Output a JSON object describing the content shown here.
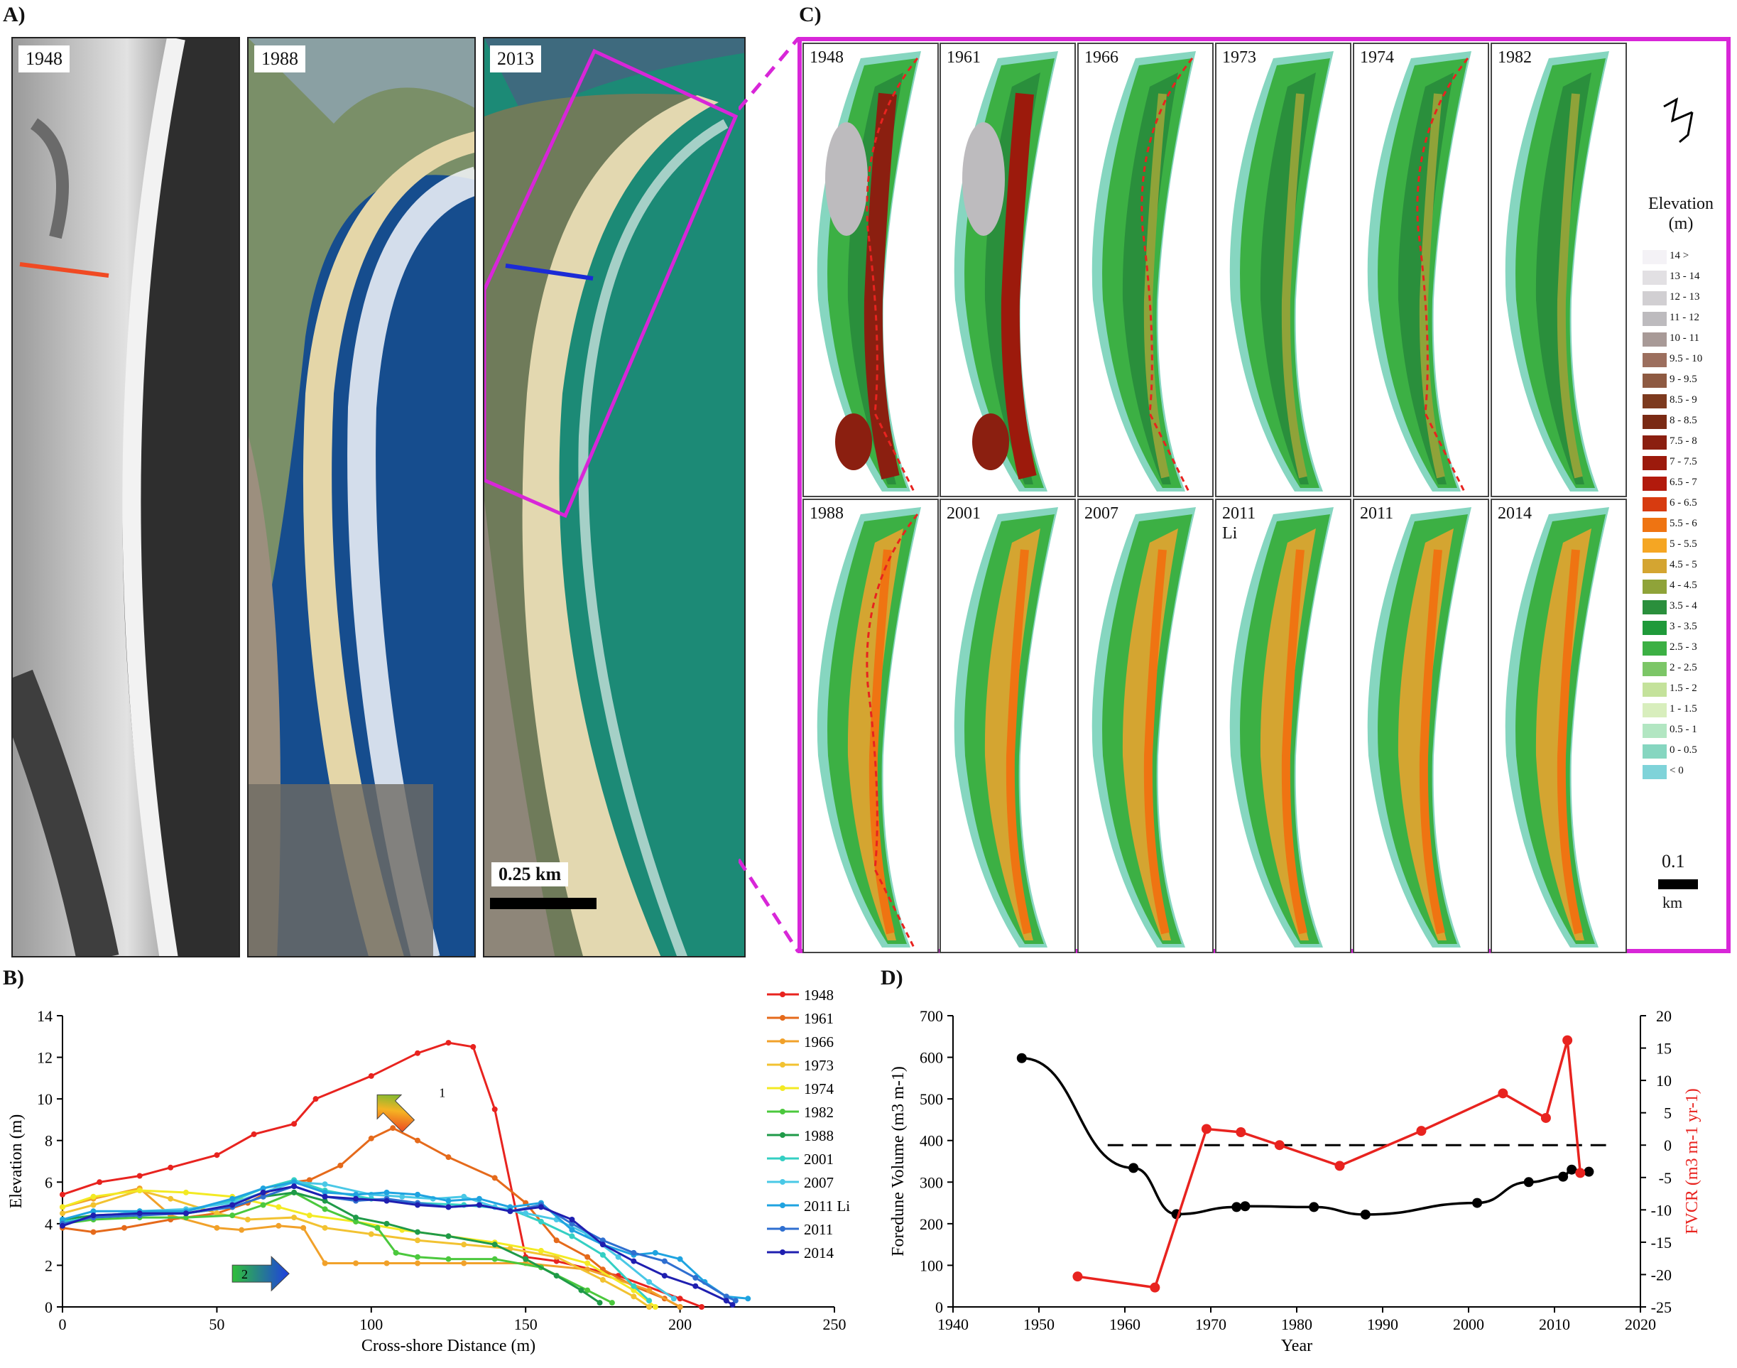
{
  "panels": {
    "a": "A)",
    "b": "B)",
    "c": "C)",
    "d": "D)"
  },
  "photos": [
    {
      "year": "1948"
    },
    {
      "year": "1988"
    },
    {
      "year": "2013"
    }
  ],
  "photo_scale": "0.25 km",
  "dem_years": [
    "1948",
    "1961",
    "1966",
    "1973",
    "1974",
    "1982",
    "1988",
    "2001",
    "2007",
    "2011\nLi",
    "2011",
    "2014"
  ],
  "legend": {
    "title_line1": "Elevation",
    "title_line2": "(m)",
    "classes": [
      {
        "label": "14 >",
        "color": "#f4f2f6"
      },
      {
        "label": "13 - 14",
        "color": "#e2e0e3"
      },
      {
        "label": "12 - 13",
        "color": "#d1cfd2"
      },
      {
        "label": "11 - 12",
        "color": "#bdbbbe"
      },
      {
        "label": "10 - 11",
        "color": "#a89a97"
      },
      {
        "label": "9.5 - 10",
        "color": "#9c6f5e"
      },
      {
        "label": "9 - 9.5",
        "color": "#8e5a42"
      },
      {
        "label": "8.5 - 9",
        "color": "#7d3a1e"
      },
      {
        "label": "8 - 8.5",
        "color": "#7a2a14"
      },
      {
        "label": "7.5 - 8",
        "color": "#8b1f10"
      },
      {
        "label": "7 - 7.5",
        "color": "#9c1a0c"
      },
      {
        "label": "6.5 - 7",
        "color": "#b21a0c"
      },
      {
        "label": "6 - 6.5",
        "color": "#d73b10"
      },
      {
        "label": "5.5 - 6",
        "color": "#ef7412"
      },
      {
        "label": "5 - 5.5",
        "color": "#f5a623"
      },
      {
        "label": "4.5 - 5",
        "color": "#d4a531"
      },
      {
        "label": "4 - 4.5",
        "color": "#8fa339"
      },
      {
        "label": "3.5 - 4",
        "color": "#2a8f3c"
      },
      {
        "label": "3 - 3.5",
        "color": "#1f9a3a"
      },
      {
        "label": "2.5 - 3",
        "color": "#3cb044"
      },
      {
        "label": "2 - 2.5",
        "color": "#7cc667"
      },
      {
        "label": "1.5 - 2",
        "color": "#c4e29b"
      },
      {
        "label": "1 - 1.5",
        "color": "#d8eebd"
      },
      {
        "label": "0.5 - 1",
        "color": "#b2e6c2"
      },
      {
        "label": "0 - 0.5",
        "color": "#86d6c0"
      },
      {
        "label": "< 0",
        "color": "#7fd3d9"
      }
    ],
    "scale_value": "0.1",
    "scale_unit": "km"
  },
  "chart_data": [
    {
      "type": "line",
      "title": "",
      "xlabel": "Cross-shore Distance  (m)",
      "ylabel": "Elevation  (m)",
      "xlim": [
        0,
        250
      ],
      "ylim": [
        0,
        14
      ],
      "xticks": [
        0,
        50,
        100,
        150,
        200,
        250
      ],
      "yticks": [
        0,
        2,
        4,
        6,
        8,
        10,
        12,
        14
      ],
      "annotations": [
        {
          "label": "1"
        },
        {
          "label": "2"
        }
      ],
      "series": [
        {
          "name": "1948",
          "color": "#e8231f",
          "x": [
            0,
            12,
            25,
            35,
            50,
            62,
            75,
            82,
            100,
            115,
            125,
            133,
            140,
            150,
            160,
            180,
            200,
            207
          ],
          "y": [
            5.4,
            6.0,
            6.3,
            6.7,
            7.3,
            8.3,
            8.8,
            10.0,
            11.1,
            12.2,
            12.7,
            12.5,
            9.5,
            2.4,
            2.2,
            1.5,
            0.4,
            0
          ]
        },
        {
          "name": "1961",
          "color": "#e56a1b",
          "x": [
            0,
            10,
            20,
            35,
            50,
            60,
            70,
            75,
            80,
            90,
            100,
            107,
            115,
            125,
            140,
            150,
            160,
            170,
            175,
            185,
            195,
            200
          ],
          "y": [
            3.8,
            3.6,
            3.8,
            4.2,
            4.5,
            5.0,
            5.8,
            6.0,
            6.1,
            6.8,
            8.1,
            8.6,
            8.0,
            7.2,
            6.2,
            5.0,
            3.2,
            2.4,
            1.8,
            1.0,
            0.4,
            0
          ]
        },
        {
          "name": "1966",
          "color": "#f1a12a",
          "x": [
            0,
            10,
            25,
            35,
            50,
            58,
            70,
            78,
            85,
            95,
            105,
            115,
            130,
            150,
            170,
            190,
            200
          ],
          "y": [
            4.8,
            5.2,
            5.7,
            4.4,
            3.8,
            3.7,
            3.9,
            3.8,
            2.1,
            2.1,
            2.1,
            2.1,
            2.1,
            2.1,
            1.8,
            0.8,
            0
          ]
        },
        {
          "name": "1973",
          "color": "#f2c231",
          "x": [
            0,
            10,
            25,
            35,
            50,
            60,
            75,
            85,
            100,
            115,
            130,
            145,
            160,
            175,
            185,
            190
          ],
          "y": [
            4.5,
            4.9,
            5.6,
            5.2,
            4.5,
            4.2,
            4.3,
            3.8,
            3.5,
            3.2,
            3.0,
            2.8,
            2.4,
            1.3,
            0.5,
            0
          ]
        },
        {
          "name": "1974",
          "color": "#f3ea23",
          "x": [
            0,
            10,
            25,
            40,
            55,
            70,
            80,
            95,
            110,
            125,
            140,
            155,
            170,
            185,
            192
          ],
          "y": [
            4.8,
            5.3,
            5.6,
            5.5,
            5.3,
            4.8,
            4.4,
            4.1,
            3.7,
            3.4,
            3.1,
            2.7,
            2.1,
            0.8,
            0
          ]
        },
        {
          "name": "1982",
          "color": "#4bc83d",
          "x": [
            0,
            10,
            25,
            40,
            55,
            65,
            75,
            85,
            95,
            102,
            108,
            115,
            125,
            140,
            155,
            170,
            178
          ],
          "y": [
            4.0,
            4.2,
            4.3,
            4.3,
            4.4,
            4.9,
            5.5,
            4.7,
            4.1,
            3.8,
            2.6,
            2.4,
            2.3,
            2.3,
            1.9,
            0.8,
            0.2
          ]
        },
        {
          "name": "1988",
          "color": "#1f9a48",
          "x": [
            0,
            10,
            25,
            40,
            55,
            65,
            75,
            85,
            95,
            105,
            115,
            125,
            140,
            150,
            160,
            168,
            174
          ],
          "y": [
            4.2,
            4.4,
            4.5,
            4.5,
            4.8,
            5.3,
            5.5,
            5.1,
            4.3,
            4.0,
            3.6,
            3.4,
            3.0,
            2.3,
            1.5,
            0.8,
            0.2
          ]
        },
        {
          "name": "2001",
          "color": "#34cfc3",
          "x": [
            0,
            10,
            25,
            40,
            55,
            65,
            75,
            85,
            100,
            115,
            130,
            145,
            155,
            165,
            175,
            185,
            190
          ],
          "y": [
            4.1,
            4.3,
            4.6,
            4.6,
            5.1,
            5.7,
            6.1,
            5.6,
            5.2,
            5.0,
            4.9,
            4.7,
            4.1,
            3.4,
            2.5,
            1.0,
            0.3
          ]
        },
        {
          "name": "2007",
          "color": "#49c8e6",
          "x": [
            0,
            10,
            25,
            40,
            55,
            65,
            75,
            85,
            100,
            110,
            120,
            130,
            140,
            150,
            160,
            170,
            180,
            190,
            198
          ],
          "y": [
            4.0,
            4.3,
            4.6,
            4.7,
            5.0,
            5.5,
            6.0,
            5.9,
            5.4,
            5.3,
            5.2,
            5.3,
            4.8,
            4.5,
            4.2,
            3.5,
            2.4,
            1.2,
            0.4
          ]
        },
        {
          "name": "2011 Li",
          "color": "#1fa3e0",
          "x": [
            0,
            10,
            25,
            40,
            55,
            65,
            75,
            85,
            95,
            105,
            115,
            125,
            135,
            145,
            155,
            165,
            175,
            185,
            192,
            200,
            208,
            215,
            222
          ],
          "y": [
            4.2,
            4.6,
            4.6,
            4.6,
            5.2,
            5.7,
            6.0,
            5.5,
            5.4,
            5.5,
            5.4,
            5.1,
            5.2,
            4.8,
            5.0,
            3.7,
            3.0,
            2.5,
            2.6,
            2.3,
            1.2,
            0.5,
            0.4
          ]
        },
        {
          "name": "2011",
          "color": "#2f6fd0",
          "x": [
            0,
            10,
            25,
            40,
            55,
            65,
            75,
            85,
            95,
            105,
            115,
            125,
            135,
            145,
            155,
            165,
            175,
            185,
            195,
            205,
            215,
            218
          ],
          "y": [
            4.0,
            4.3,
            4.4,
            4.5,
            4.8,
            5.3,
            5.8,
            5.3,
            5.1,
            5.2,
            5.0,
            4.8,
            4.9,
            4.6,
            4.9,
            4.0,
            3.2,
            2.6,
            2.2,
            1.4,
            0.5,
            0.3
          ]
        },
        {
          "name": "2014",
          "color": "#1f1fb0",
          "x": [
            0,
            10,
            25,
            40,
            55,
            65,
            75,
            85,
            95,
            105,
            115,
            125,
            135,
            145,
            155,
            165,
            175,
            185,
            195,
            205,
            215,
            217
          ],
          "y": [
            3.9,
            4.4,
            4.5,
            4.5,
            4.9,
            5.5,
            5.8,
            5.3,
            5.2,
            5.1,
            4.9,
            4.8,
            4.9,
            4.6,
            4.8,
            4.2,
            3.0,
            2.2,
            1.5,
            1.0,
            0.3,
            0.1
          ]
        }
      ]
    },
    {
      "type": "line",
      "title": "",
      "xlabel": "Year",
      "ylabel": "Foredune Volume  (m3 m-1)",
      "ylabel_right": "FVCR  (m3 m-1 yr-1)",
      "xlim": [
        1940,
        2020
      ],
      "ylim": [
        0,
        700
      ],
      "ylim_right": [
        -25,
        20
      ],
      "xticks": [
        1940,
        1950,
        1960,
        1970,
        1980,
        1990,
        2000,
        2010,
        2020
      ],
      "yticks": [
        0,
        100,
        200,
        300,
        400,
        500,
        600,
        700
      ],
      "yticks_right": [
        -25,
        -20,
        -15,
        -10,
        -5,
        0,
        5,
        10,
        15,
        20
      ],
      "reference_line_right": 0,
      "series": [
        {
          "name": "Foredune Volume",
          "axis": "left",
          "color": "#000000",
          "x": [
            1948,
            1961,
            1966,
            1973,
            1974,
            1982,
            1988,
            2001,
            2007,
            2011,
            2012,
            2014
          ],
          "y": [
            598,
            334,
            223,
            240,
            242,
            240,
            222,
            250,
            300,
            313,
            330,
            325
          ]
        },
        {
          "name": "FVCR",
          "axis": "right",
          "color": "#e8231f",
          "x": [
            1954.5,
            1963.5,
            1969.5,
            1973.5,
            1978,
            1985,
            1994.5,
            2004,
            2009,
            2011.5,
            2013
          ],
          "y": [
            -20.3,
            -22.0,
            2.5,
            2.0,
            0,
            -3.2,
            2.2,
            8.0,
            4.2,
            16.2,
            -4.3
          ]
        }
      ]
    }
  ]
}
